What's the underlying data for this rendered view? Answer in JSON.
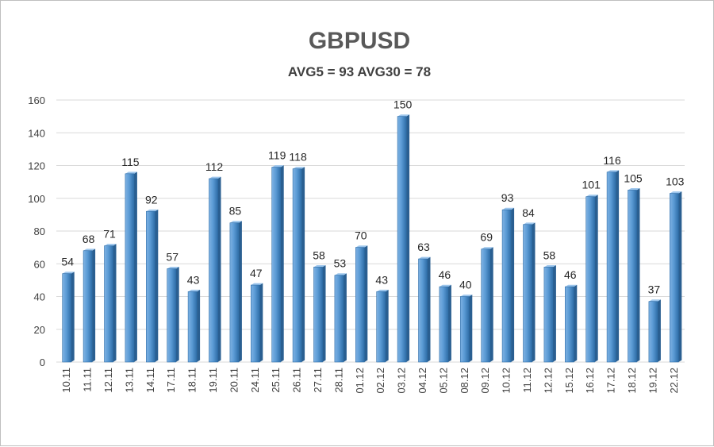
{
  "chart_data": {
    "type": "bar",
    "title": "GBPUSD",
    "subtitle": "AVG5 = 93 AVG30 = 78",
    "xlabel": "",
    "ylabel": "",
    "ylim": [
      0,
      160
    ],
    "yticks": [
      0,
      20,
      40,
      60,
      80,
      100,
      120,
      140,
      160
    ],
    "grid": true,
    "legend": "none",
    "bar_color": "#5b9bd5",
    "categories": [
      "10.11",
      "11.11",
      "12.11",
      "13.11",
      "14.11",
      "17.11",
      "18.11",
      "19.11",
      "20.11",
      "24.11",
      "25.11",
      "26.11",
      "27.11",
      "28.11",
      "01.12",
      "02.12",
      "03.12",
      "04.12",
      "05.12",
      "08.12",
      "09.12",
      "10.12",
      "11.12",
      "12.12",
      "15.12",
      "16.12",
      "17.12",
      "18.12",
      "19.12",
      "22.12"
    ],
    "values": [
      54,
      68,
      71,
      115,
      92,
      57,
      43,
      112,
      85,
      47,
      119,
      118,
      58,
      53,
      70,
      43,
      150,
      63,
      46,
      40,
      69,
      93,
      84,
      58,
      46,
      101,
      116,
      105,
      37,
      103
    ]
  }
}
